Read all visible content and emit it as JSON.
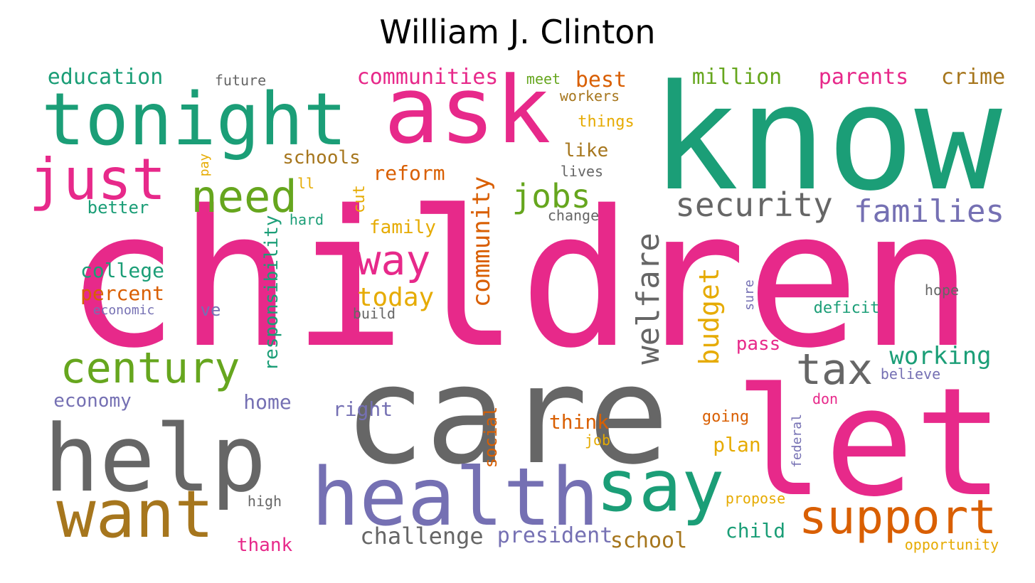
{
  "title": "William J. Clinton",
  "colors": {
    "green": "#1b9e77",
    "pink": "#e7298a",
    "gray": "#666666",
    "purple": "#7570b3",
    "orange": "#d95f02",
    "olive": "#66a61e",
    "yellow": "#e6ab02",
    "brown": "#a6761d"
  },
  "words": [
    {
      "text": "children",
      "color": "pink"
    },
    {
      "text": "know",
      "color": "green"
    },
    {
      "text": "care",
      "color": "gray"
    },
    {
      "text": "let",
      "color": "pink"
    },
    {
      "text": "ask",
      "color": "pink"
    },
    {
      "text": "tonight",
      "color": "green"
    },
    {
      "text": "help",
      "color": "gray"
    },
    {
      "text": "health",
      "color": "purple"
    },
    {
      "text": "say",
      "color": "green"
    },
    {
      "text": "want",
      "color": "brown"
    },
    {
      "text": "just",
      "color": "pink"
    },
    {
      "text": "support",
      "color": "orange"
    },
    {
      "text": "century",
      "color": "olive"
    },
    {
      "text": "need",
      "color": "olive"
    },
    {
      "text": "tax",
      "color": "gray"
    },
    {
      "text": "way",
      "color": "pink"
    },
    {
      "text": "welfare",
      "color": "gray"
    },
    {
      "text": "security",
      "color": "gray"
    },
    {
      "text": "families",
      "color": "purple"
    },
    {
      "text": "jobs",
      "color": "olive"
    },
    {
      "text": "working",
      "color": "green"
    },
    {
      "text": "budget",
      "color": "yellow"
    },
    {
      "text": "community",
      "color": "orange"
    },
    {
      "text": "today",
      "color": "yellow"
    },
    {
      "text": "challenge",
      "color": "gray"
    },
    {
      "text": "education",
      "color": "green"
    },
    {
      "text": "communities",
      "color": "pink"
    },
    {
      "text": "million",
      "color": "olive"
    },
    {
      "text": "parents",
      "color": "pink"
    },
    {
      "text": "crime",
      "color": "brown"
    },
    {
      "text": "best",
      "color": "orange"
    },
    {
      "text": "responsibility",
      "color": "green"
    },
    {
      "text": "reform",
      "color": "orange"
    },
    {
      "text": "schools",
      "color": "brown"
    },
    {
      "text": "president",
      "color": "purple"
    },
    {
      "text": "school",
      "color": "brown"
    },
    {
      "text": "right",
      "color": "purple"
    },
    {
      "text": "social",
      "color": "orange"
    },
    {
      "text": "college",
      "color": "green"
    },
    {
      "text": "percent",
      "color": "orange"
    },
    {
      "text": "economy",
      "color": "purple"
    },
    {
      "text": "home",
      "color": "purple"
    },
    {
      "text": "think",
      "color": "orange"
    },
    {
      "text": "plan",
      "color": "yellow"
    },
    {
      "text": "child",
      "color": "green"
    },
    {
      "text": "pass",
      "color": "pink"
    },
    {
      "text": "better",
      "color": "green"
    },
    {
      "text": "like",
      "color": "brown"
    },
    {
      "text": "family",
      "color": "yellow"
    },
    {
      "text": "thank",
      "color": "pink"
    },
    {
      "text": "cut",
      "color": "yellow"
    },
    {
      "text": "ve",
      "color": "purple"
    },
    {
      "text": "deficit",
      "color": "green"
    },
    {
      "text": "things",
      "color": "yellow"
    },
    {
      "text": "workers",
      "color": "brown"
    },
    {
      "text": "future",
      "color": "gray"
    },
    {
      "text": "meet",
      "color": "olive"
    },
    {
      "text": "lives",
      "color": "gray"
    },
    {
      "text": "change",
      "color": "gray"
    },
    {
      "text": "hard",
      "color": "green"
    },
    {
      "text": "economic",
      "color": "purple"
    },
    {
      "text": "build",
      "color": "gray"
    },
    {
      "text": "hope",
      "color": "gray"
    },
    {
      "text": "believe",
      "color": "purple"
    },
    {
      "text": "don",
      "color": "pink"
    },
    {
      "text": "going",
      "color": "orange"
    },
    {
      "text": "job",
      "color": "yellow"
    },
    {
      "text": "federal",
      "color": "purple"
    },
    {
      "text": "propose",
      "color": "yellow"
    },
    {
      "text": "opportunity",
      "color": "yellow"
    },
    {
      "text": "high",
      "color": "gray"
    },
    {
      "text": "sure",
      "color": "purple"
    },
    {
      "text": "pay",
      "color": "yellow"
    },
    {
      "text": "ll",
      "color": "yellow"
    }
  ]
}
